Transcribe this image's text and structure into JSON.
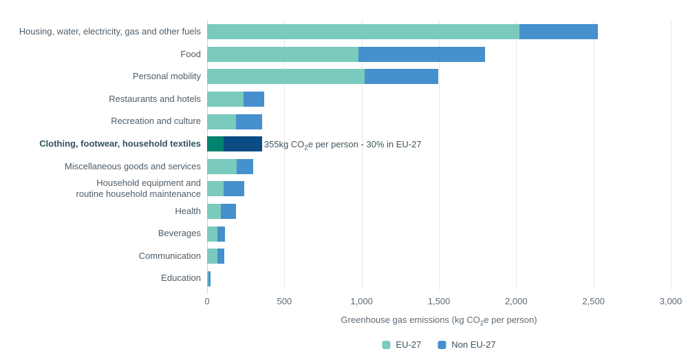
{
  "chart_data": {
    "type": "bar",
    "orientation": "horizontal",
    "stacked": true,
    "title": "",
    "xlabel": "Greenhouse gas emissions (kg CO2e per person)",
    "xaxis_title": {
      "pre": "Greenhouse gas emissions (kg CO",
      "sub": "2",
      "post": "e per person)"
    },
    "xlim": [
      0,
      3000
    ],
    "xticks": [
      0,
      500,
      1000,
      1500,
      2000,
      2500,
      3000
    ],
    "xtick_labels": [
      "0",
      "500",
      "1,000",
      "1,500",
      "2,000",
      "2,500",
      "3,000"
    ],
    "grid": true,
    "legend_position": "bottom-center",
    "categories": [
      "Housing, water, electricity, gas and other fuels",
      "Food",
      "Personal mobility",
      "Restaurants and hotels",
      "Recreation and culture",
      "Clothing, footwear, household textiles",
      "Miscellaneous goods and services",
      "Household equipment and\nroutine household maintenance",
      "Health",
      "Beverages",
      "Communication",
      "Education"
    ],
    "series": [
      {
        "name": "EU-27",
        "color": "#7bcabe",
        "highlight_color": "#028270",
        "values": [
          2020,
          980,
          1020,
          235,
          185,
          106.5,
          190,
          105,
          90,
          65,
          65,
          7
        ]
      },
      {
        "name": "Non EU-27",
        "color": "#4590cd",
        "highlight_color": "#0b4c85",
        "values": [
          510,
          820,
          475,
          135,
          170,
          248.5,
          110,
          135,
          95,
          50,
          45,
          15
        ]
      }
    ],
    "highlight": {
      "index": 5,
      "total": 355,
      "eu_share_pct": 30,
      "annotation": {
        "pre": "355kg CO",
        "sub": "2",
        "post": "e per person - 30% in EU-27"
      }
    }
  },
  "colors": {
    "gridline": "#e6e6e6",
    "axis_line": "#ccd1d5",
    "category_label": "#4d5c68",
    "category_label_bold": "#33515d",
    "tick_label": "#5d6a75",
    "annotation_text": "#42545e"
  }
}
